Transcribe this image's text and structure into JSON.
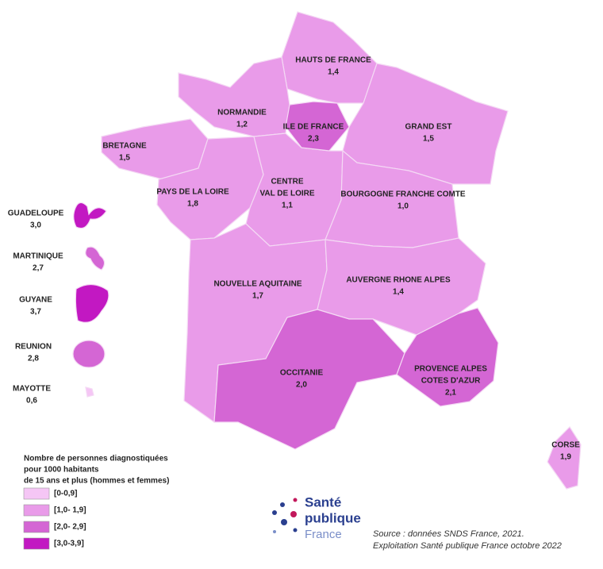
{
  "regions": [
    {
      "name": [
        "HAUTS DE FRANCE"
      ],
      "value": "1,4",
      "color": "#e99be9"
    },
    {
      "name": [
        "NORMANDIE"
      ],
      "value": "1,2",
      "color": "#e99be9"
    },
    {
      "name": [
        "ILE DE FRANCE"
      ],
      "value": "2,3",
      "color": "#d466d4"
    },
    {
      "name": [
        "GRAND EST"
      ],
      "value": "1,5",
      "color": "#e99be9"
    },
    {
      "name": [
        "BRETAGNE"
      ],
      "value": "1,5",
      "color": "#e99be9"
    },
    {
      "name": [
        "PAYS DE LA LOIRE"
      ],
      "value": "1,8",
      "color": "#e99be9"
    },
    {
      "name": [
        "CENTRE",
        "VAL DE LOIRE"
      ],
      "value": "1,1",
      "color": "#e99be9"
    },
    {
      "name": [
        "BOURGOGNE FRANCHE COMTE"
      ],
      "value": "1,0",
      "color": "#e99be9"
    },
    {
      "name": [
        "NOUVELLE AQUITAINE"
      ],
      "value": "1,7",
      "color": "#e99be9"
    },
    {
      "name": [
        "AUVERGNE RHONE ALPES"
      ],
      "value": "1,4",
      "color": "#e99be9"
    },
    {
      "name": [
        "OCCITANIE"
      ],
      "value": "2,0",
      "color": "#d466d4"
    },
    {
      "name": [
        "PROVENCE ALPES",
        "COTES D'AZUR"
      ],
      "value": "2,1",
      "color": "#d466d4"
    },
    {
      "name": [
        "CORSE"
      ],
      "value": "1,9",
      "color": "#e99be9"
    }
  ],
  "overseas": [
    {
      "name": "GUADELOUPE",
      "value": "3,0",
      "color": "#c218c2"
    },
    {
      "name": "MARTINIQUE",
      "value": "2,7",
      "color": "#d466d4"
    },
    {
      "name": "GUYANE",
      "value": "3,7",
      "color": "#c218c2"
    },
    {
      "name": "REUNION",
      "value": "2,8",
      "color": "#d466d4"
    },
    {
      "name": "MAYOTTE",
      "value": "0,6",
      "color": "#f5c6f5"
    }
  ],
  "legend": {
    "title": [
      "Nombre de personnes diagnostiquées",
      "pour 1000 habitants",
      "de 15 ans et plus (hommes et femmes)"
    ],
    "classes": [
      {
        "label": "[0-0,9]",
        "color": "#f5c6f5"
      },
      {
        "label": "[1,0- 1,9]",
        "color": "#e99be9"
      },
      {
        "label": "[2,0- 2,9]",
        "color": "#d466d4"
      },
      {
        "label": "[3,0-3,9]",
        "color": "#c218c2"
      }
    ]
  },
  "logo": [
    "Santé",
    "publique",
    "France"
  ],
  "source": [
    "Source : données SNDS France, 2021.",
    "Exploitation Santé publique France octobre 2022"
  ]
}
